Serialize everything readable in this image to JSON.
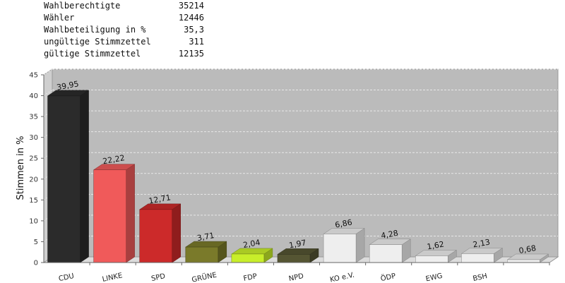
{
  "stats": [
    {
      "label": "Wahlberechtigte",
      "value": "35214"
    },
    {
      "label": "Wähler",
      "value": "12446"
    },
    {
      "label": "Wahlbeteiligung in %",
      "value": "35,3"
    },
    {
      "label": "ungültige Stimmzettel",
      "value": "311"
    },
    {
      "label": "gültige Stimmzettel",
      "value": "12135"
    }
  ],
  "chart_data": {
    "type": "bar",
    "categories": [
      "CDU",
      "LINKE",
      "SPD",
      "GRÜNE",
      "FDP",
      "NPD",
      "KO e.V.",
      "ÖDP",
      "EWG",
      "BSH",
      ""
    ],
    "values": [
      39.95,
      22.22,
      12.71,
      3.71,
      2.04,
      1.97,
      6.86,
      4.28,
      1.62,
      2.13,
      0.68
    ],
    "value_labels": [
      "39,95",
      "22,22",
      "12,71",
      "3,71",
      "2,04",
      "1,97",
      "6,86",
      "4,28",
      "1,62",
      "2,13",
      "0,68"
    ],
    "colors": [
      "#2b2b2b",
      "#f05a5a",
      "#cc2a2a",
      "#7a7a2a",
      "#c8ee2a",
      "#555533",
      "#eeeeee",
      "#eeeeee",
      "#eeeeee",
      "#eeeeee",
      "#eeeeee"
    ],
    "ylabel": "Stimmen in %",
    "ylim": [
      0,
      45
    ],
    "yticks": [
      0,
      5,
      10,
      15,
      20,
      25,
      30,
      35,
      40,
      45
    ],
    "grid": true,
    "plot_background": "#bbbbbb"
  }
}
